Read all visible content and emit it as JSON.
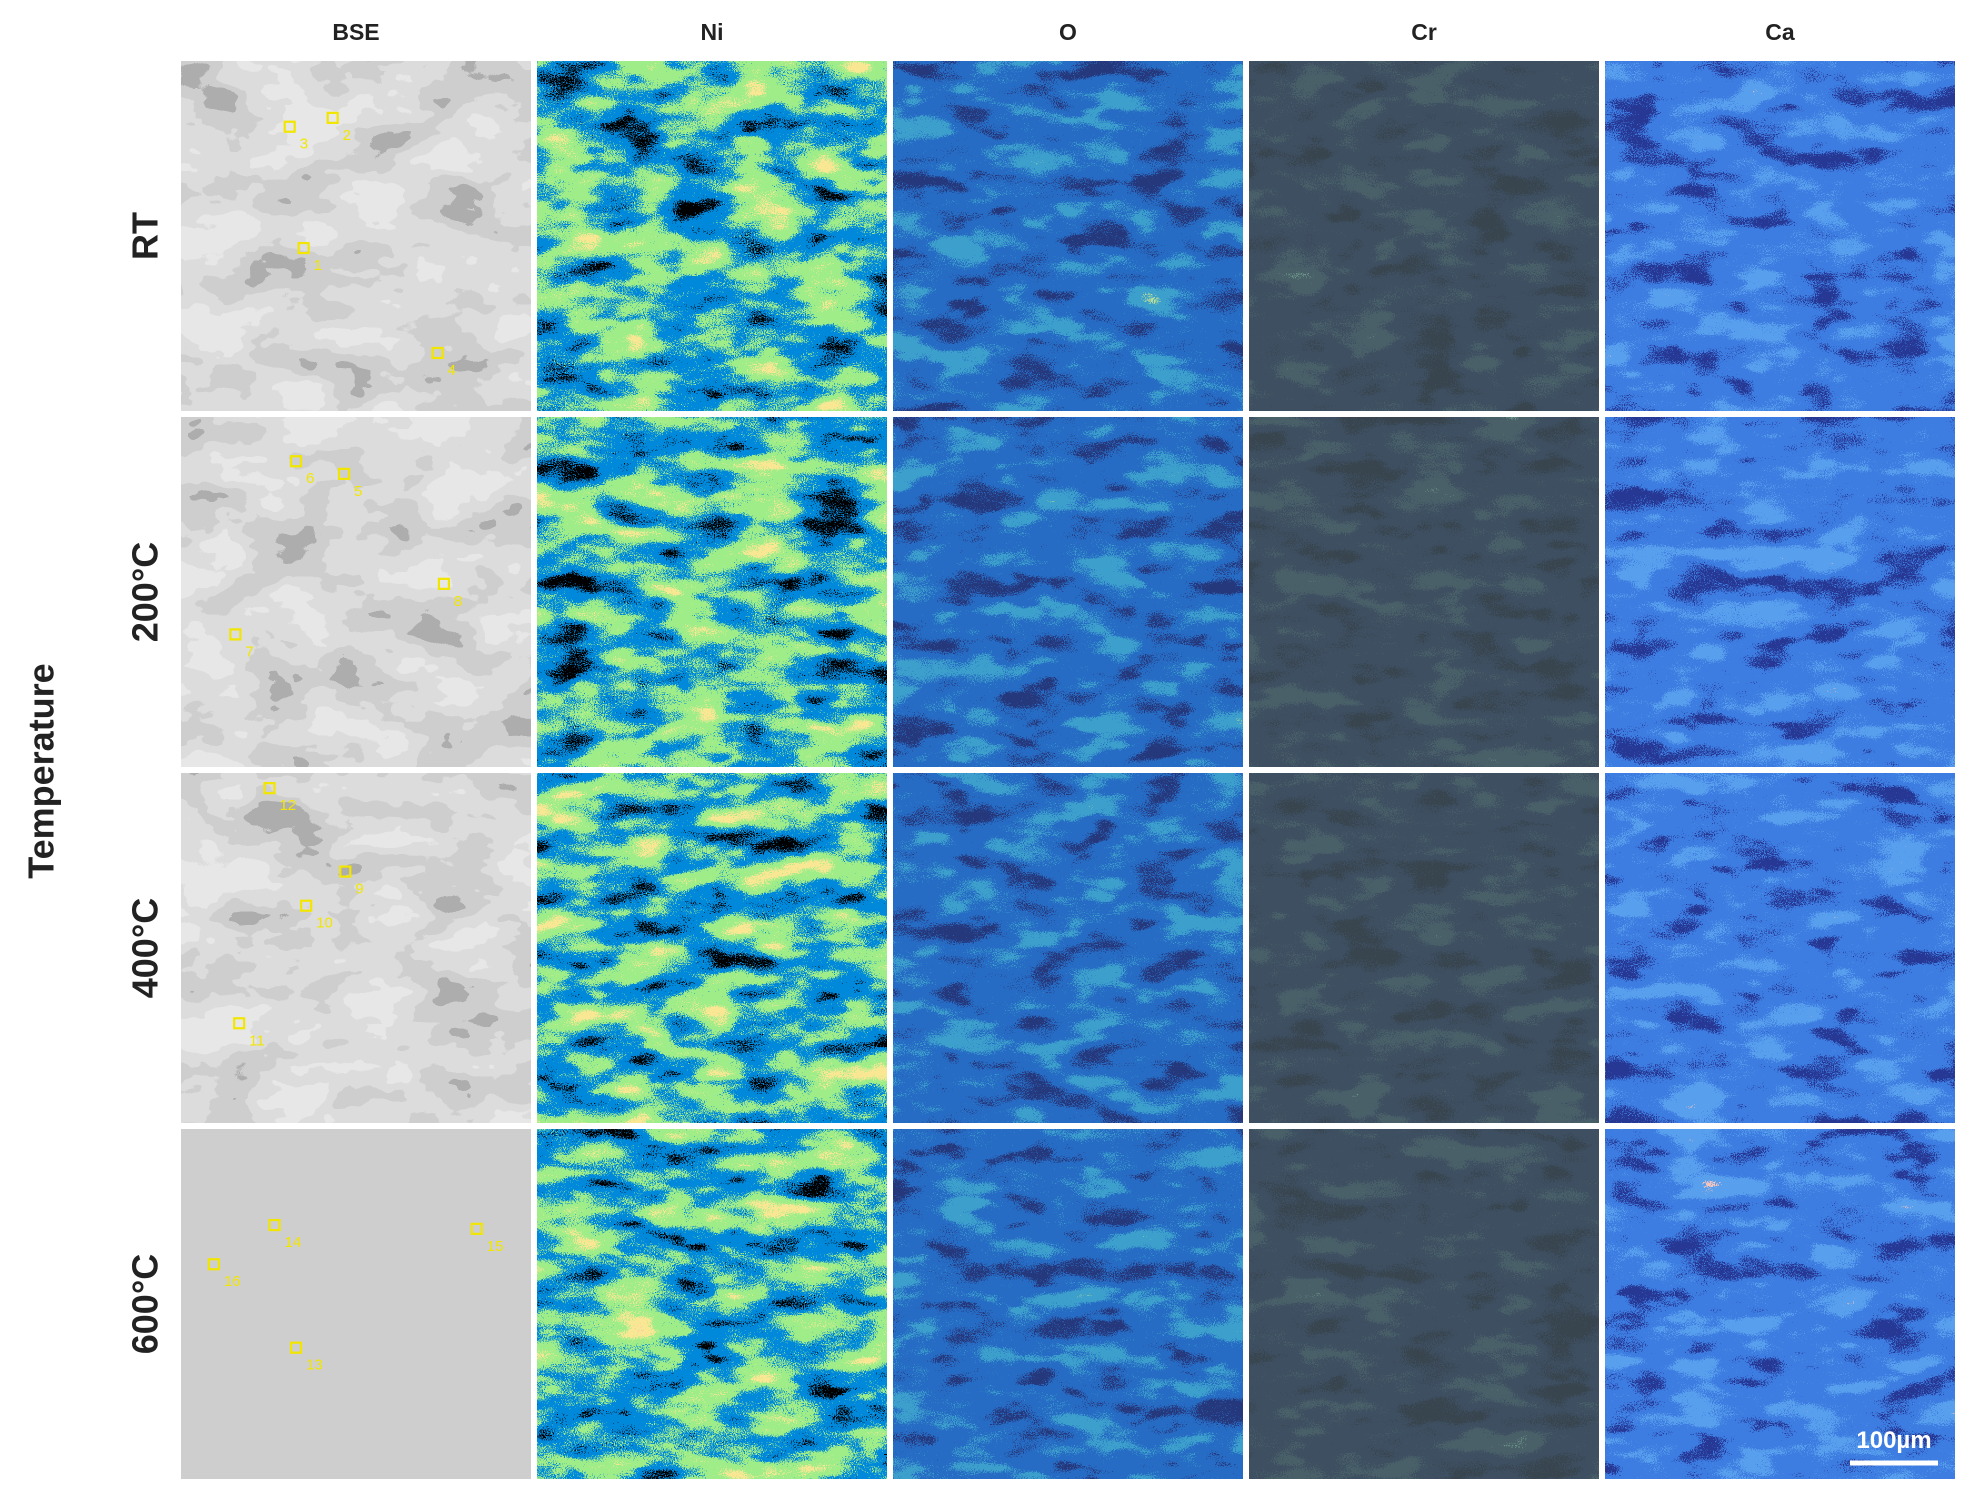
{
  "columns": [
    "BSE",
    "Ni",
    "O",
    "Cr",
    "Ca"
  ],
  "y_axis_label": "Temperature",
  "rows": [
    {
      "label": "RT",
      "points": [
        "3",
        "2",
        "1",
        "4"
      ]
    },
    {
      "label": "200°C",
      "points": [
        "6",
        "5",
        "8",
        "7"
      ]
    },
    {
      "label": "400°C",
      "points": [
        "12",
        "9",
        "10",
        "11"
      ]
    },
    {
      "label": "600°C",
      "points": [
        "14",
        "15",
        "16",
        "13"
      ]
    }
  ],
  "scale_bar": "100µm"
}
